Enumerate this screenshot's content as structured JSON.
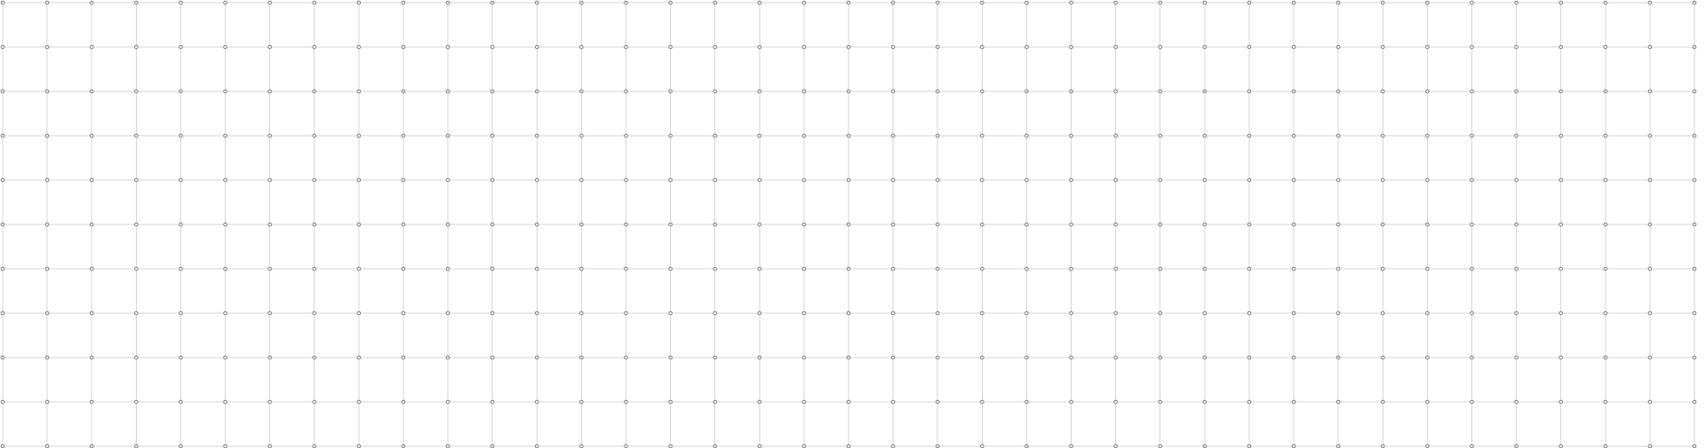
{
  "diagram": {
    "type": "grid-of-nodes",
    "columns": 39,
    "rows": 11,
    "colors": {
      "background": "#ffffff",
      "line": "#d6d6d6",
      "node_stroke": "#7a7a7a",
      "node_fill": "#ffffff"
    }
  }
}
